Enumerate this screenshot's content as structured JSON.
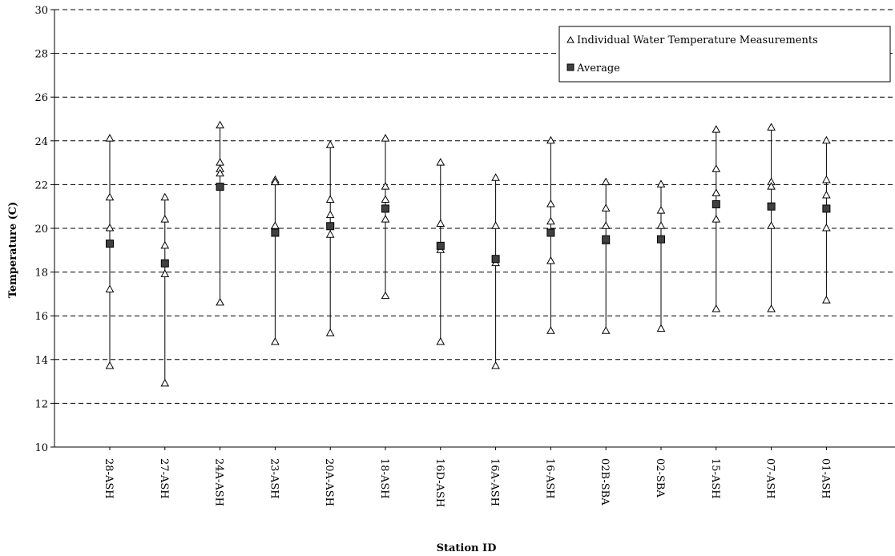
{
  "chart_data": {
    "type": "scatter",
    "title": "",
    "xlabel": "Station ID",
    "ylabel": "Temperature (C)",
    "ylim": [
      10,
      30
    ],
    "yticks": [
      10,
      12,
      14,
      16,
      18,
      20,
      22,
      24,
      26,
      28,
      30
    ],
    "grid": "horizontal dashed",
    "legend_position": "top-right",
    "categories": [
      "28-ASH",
      "27-ASH",
      "24A-ASH",
      "23-ASH",
      "20A-ASH",
      "18-ASH",
      "16D-ASH",
      "16A-ASH",
      "16-ASH",
      "02B-SBA",
      "02-SBA",
      "15-ASH",
      "07-ASH",
      "01-ASH"
    ],
    "series": [
      {
        "name": "Individual Water Temperature Measurements",
        "marker": "open-triangle",
        "values": [
          [
            24.1,
            21.4,
            20.0,
            17.2,
            13.7
          ],
          [
            21.4,
            20.4,
            19.2,
            17.9,
            12.9
          ],
          [
            24.7,
            23.0,
            22.7,
            22.5,
            16.6
          ],
          [
            22.2,
            22.1,
            20.1,
            14.8
          ],
          [
            23.8,
            21.3,
            20.6,
            19.7,
            15.2
          ],
          [
            24.1,
            21.9,
            21.3,
            20.4,
            16.9
          ],
          [
            23.0,
            20.2,
            19.0,
            14.8
          ],
          [
            22.3,
            20.1,
            18.4,
            13.7
          ],
          [
            24.0,
            21.1,
            20.3,
            18.5,
            15.3
          ],
          [
            22.1,
            20.9,
            20.1,
            19.4,
            15.3
          ],
          [
            22.0,
            20.8,
            20.1,
            15.4
          ],
          [
            24.5,
            22.7,
            21.6,
            20.4,
            16.3
          ],
          [
            24.6,
            22.1,
            21.9,
            20.1,
            16.3
          ],
          [
            24.0,
            22.2,
            21.5,
            20.0,
            16.7
          ]
        ]
      },
      {
        "name": "Average",
        "marker": "filled-square",
        "values": [
          19.3,
          18.4,
          21.9,
          19.8,
          20.1,
          20.9,
          19.2,
          18.6,
          19.8,
          19.5,
          19.5,
          21.1,
          21.0,
          20.9
        ]
      }
    ],
    "colors": {
      "marker_fill_open": "#ffffff",
      "marker_fill_avg": "#404040",
      "stroke": "#000000"
    }
  }
}
